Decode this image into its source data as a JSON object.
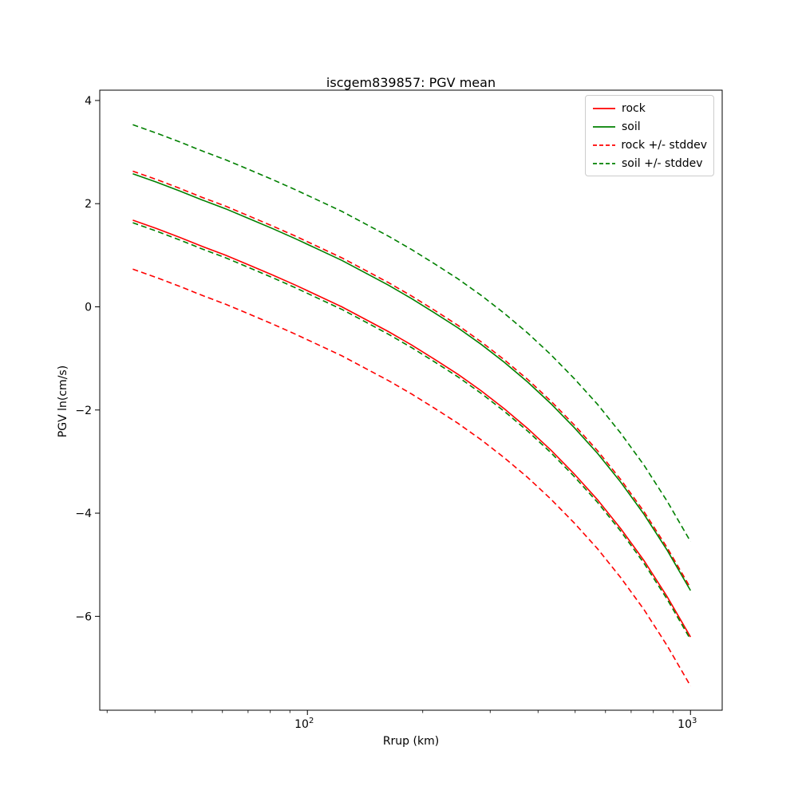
{
  "chart_data": {
    "type": "line",
    "title": "iscgem839857: PGV mean",
    "xlabel": "Rrup (km)",
    "ylabel": "PGV ln(cm/s)",
    "xscale": "log",
    "xlim": [
      28.7,
      1210
    ],
    "ylim": [
      -7.82,
      4.2
    ],
    "grid": false,
    "legend_position": "upper right",
    "colors": {
      "rock": "#ff0000",
      "soil": "#008000",
      "frame": "#000000",
      "legend_border": "#cccccc"
    },
    "x": [
      35.0,
      40.3,
      46.3,
      53.2,
      61.2,
      70.4,
      80.9,
      93.1,
      107.0,
      123.0,
      141.5,
      162.7,
      187.1,
      215.1,
      247.4,
      284.5,
      327.1,
      376.1,
      432.5,
      497.3,
      571.9,
      657.6,
      756.2,
      869.5,
      1000.0
    ],
    "curves": [
      {
        "id": "rock-mean",
        "name": "rock",
        "color": "#ff0000",
        "style": "solid",
        "values": [
          1.68,
          1.52,
          1.35,
          1.17,
          1.0,
          0.81,
          0.62,
          0.42,
          0.21,
          0.0,
          -0.24,
          -0.48,
          -0.74,
          -1.02,
          -1.31,
          -1.63,
          -1.98,
          -2.36,
          -2.78,
          -3.24,
          -3.74,
          -4.3,
          -4.92,
          -5.62,
          -6.4
        ]
      },
      {
        "id": "soil-mean",
        "name": "soil",
        "color": "#008000",
        "style": "solid",
        "values": [
          2.58,
          2.42,
          2.25,
          2.07,
          1.9,
          1.71,
          1.52,
          1.32,
          1.11,
          0.9,
          0.66,
          0.42,
          0.16,
          -0.12,
          -0.41,
          -0.73,
          -1.08,
          -1.46,
          -1.88,
          -2.34,
          -2.84,
          -3.4,
          -4.02,
          -4.72,
          -5.5
        ]
      },
      {
        "id": "rock-plus-stddev",
        "name": "rock + stddev",
        "color": "#ff0000",
        "style": "dashed",
        "values": [
          2.63,
          2.47,
          2.3,
          2.12,
          1.95,
          1.76,
          1.57,
          1.37,
          1.16,
          0.95,
          0.71,
          0.47,
          0.21,
          -0.07,
          -0.36,
          -0.68,
          -1.03,
          -1.41,
          -1.83,
          -2.29,
          -2.79,
          -3.35,
          -3.97,
          -4.67,
          -5.45
        ]
      },
      {
        "id": "rock-minus-stddev",
        "name": "rock - stddev",
        "color": "#ff0000",
        "style": "dashed",
        "values": [
          0.73,
          0.57,
          0.4,
          0.22,
          0.05,
          -0.14,
          -0.33,
          -0.53,
          -0.74,
          -0.95,
          -1.19,
          -1.43,
          -1.69,
          -1.97,
          -2.26,
          -2.58,
          -2.93,
          -3.31,
          -3.73,
          -4.19,
          -4.69,
          -5.25,
          -5.87,
          -6.57,
          -7.35
        ]
      },
      {
        "id": "soil-plus-stddev",
        "name": "soil + stddev",
        "color": "#008000",
        "style": "dashed",
        "values": [
          3.53,
          3.37,
          3.2,
          3.02,
          2.85,
          2.66,
          2.47,
          2.27,
          2.06,
          1.85,
          1.61,
          1.37,
          1.11,
          0.83,
          0.54,
          0.22,
          -0.13,
          -0.51,
          -0.93,
          -1.39,
          -1.89,
          -2.45,
          -3.07,
          -3.77,
          -4.55
        ]
      },
      {
        "id": "soil-minus-stddev",
        "name": "soil - stddev",
        "color": "#008000",
        "style": "dashed",
        "values": [
          1.63,
          1.47,
          1.3,
          1.12,
          0.95,
          0.76,
          0.57,
          0.37,
          0.16,
          -0.05,
          -0.29,
          -0.53,
          -0.79,
          -1.07,
          -1.36,
          -1.68,
          -2.03,
          -2.41,
          -2.83,
          -3.29,
          -3.79,
          -4.35,
          -4.97,
          -5.67,
          -6.45
        ]
      }
    ],
    "legend": [
      {
        "label": "rock",
        "color": "#ff0000",
        "style": "solid"
      },
      {
        "label": "soil",
        "color": "#008000",
        "style": "solid"
      },
      {
        "label": "rock +/- stddev",
        "color": "#ff0000",
        "style": "dashed"
      },
      {
        "label": "soil +/- stddev",
        "color": "#008000",
        "style": "dashed"
      }
    ],
    "yticks": [
      {
        "v": 4,
        "label": "4"
      },
      {
        "v": 2,
        "label": "2"
      },
      {
        "v": 0,
        "label": "0"
      },
      {
        "v": -2,
        "label": "−2"
      },
      {
        "v": -4,
        "label": "−4"
      },
      {
        "v": -6,
        "label": "−6"
      }
    ],
    "xticks": [
      {
        "v": 100,
        "base": "10",
        "exp": "2"
      },
      {
        "v": 1000,
        "base": "10",
        "exp": "3"
      }
    ]
  }
}
